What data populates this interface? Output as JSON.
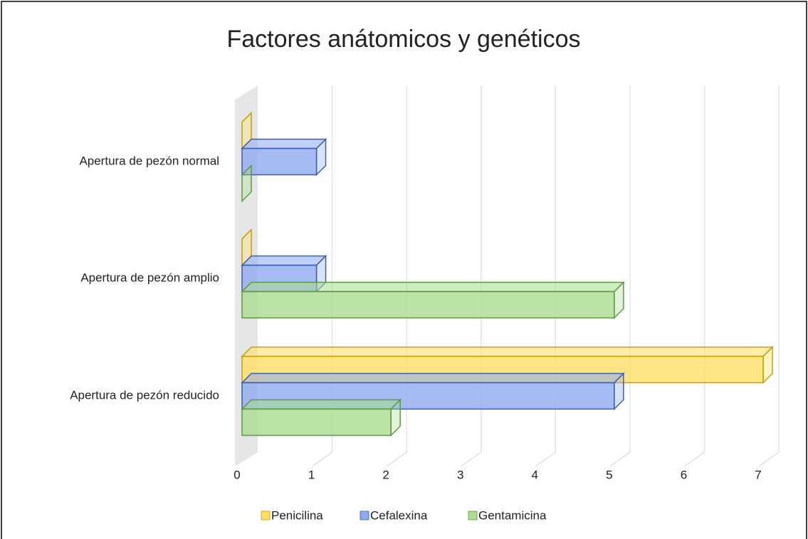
{
  "chart_data": {
    "type": "bar3d_horizontal",
    "title": "Factores anátomicos y genéticos",
    "categories": [
      "Apertura de pezón normal",
      "Apertura de pezón amplio",
      "Apertura de pezón reducido"
    ],
    "series": [
      {
        "name": "Penicilina",
        "color": "#ffe066",
        "values": [
          0,
          0,
          7
        ]
      },
      {
        "name": "Cefalexina",
        "color": "#8eaaee",
        "values": [
          1,
          1,
          5
        ]
      },
      {
        "name": "Gentamicina",
        "color": "#a9dc8e",
        "values": [
          0,
          5,
          2
        ]
      }
    ],
    "xlim": [
      0,
      7
    ],
    "xticks": [
      0,
      1,
      2,
      3,
      4,
      5,
      6,
      7
    ],
    "grid": true,
    "legend": "bottom"
  }
}
